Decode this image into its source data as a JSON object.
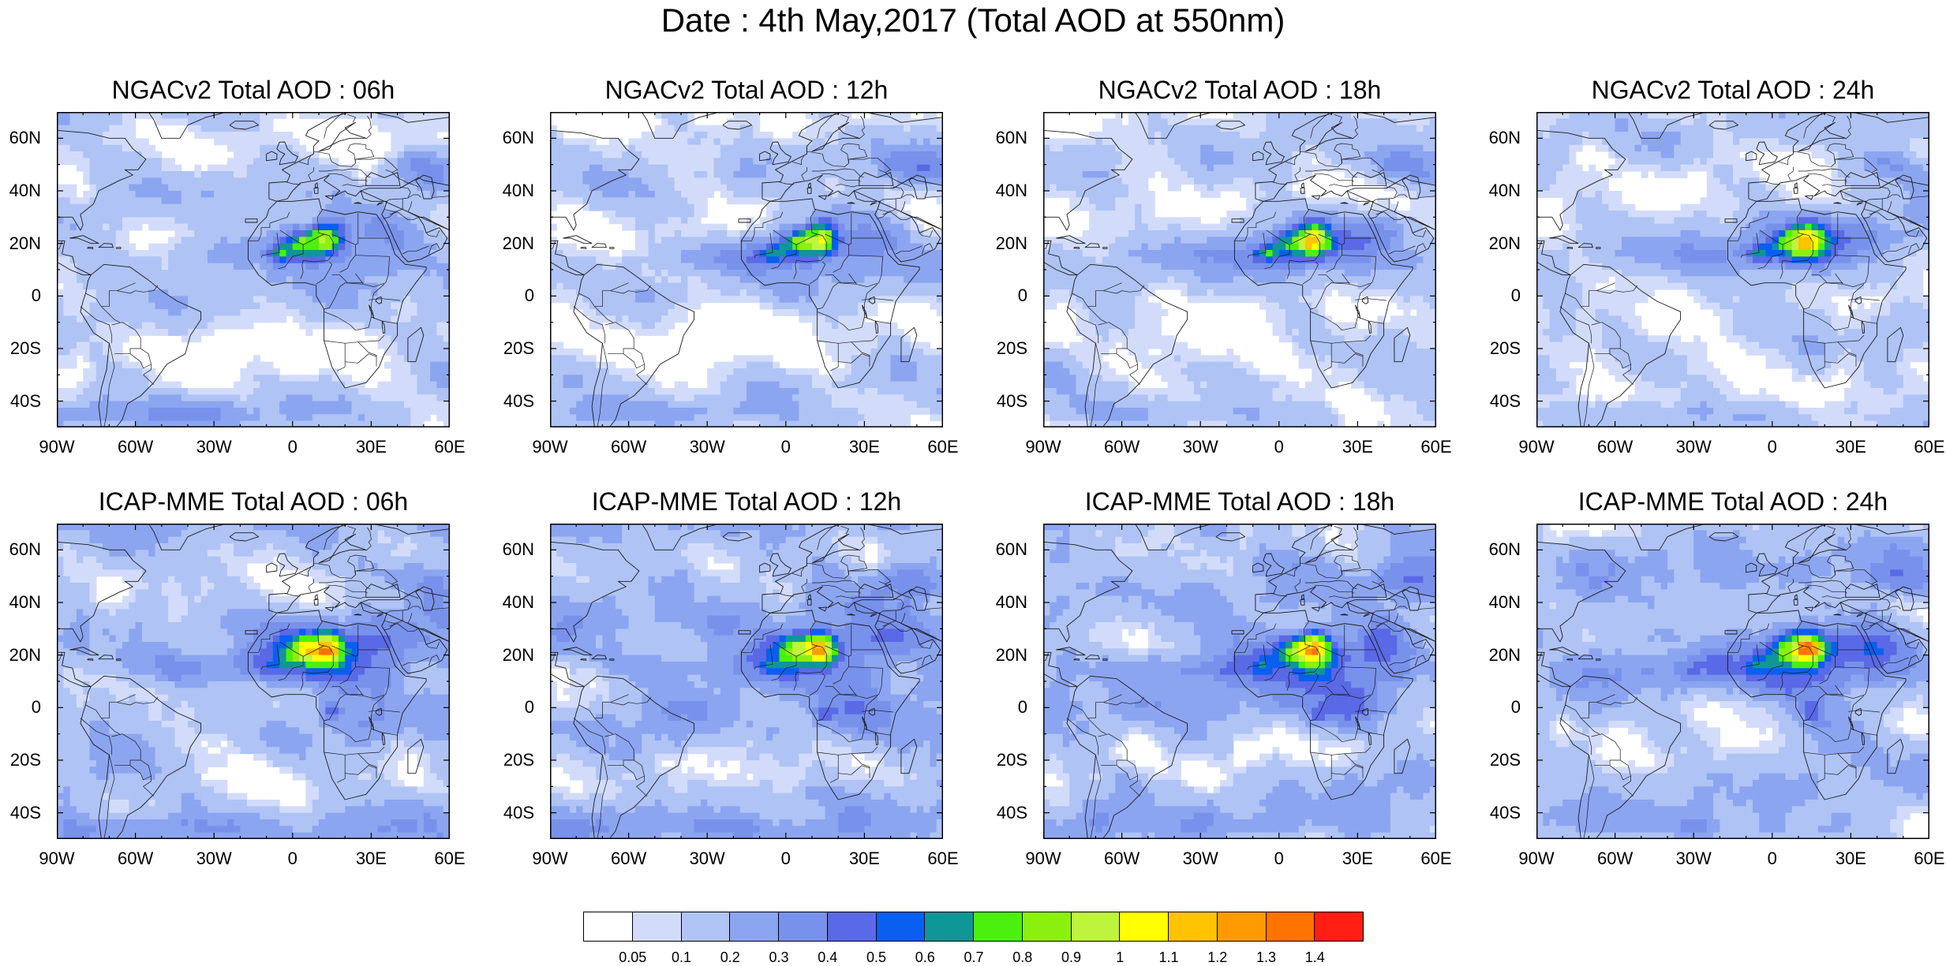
{
  "figure": {
    "title": "Date : 4th May,2017 (Total AOD at 550nm)"
  },
  "axes": {
    "lat_ticks": [
      "60N",
      "40N",
      "20N",
      "0",
      "20S",
      "40S"
    ],
    "lon_ticks": [
      "90W",
      "60W",
      "30W",
      "0",
      "30E",
      "60E"
    ],
    "lat_range": [
      -50,
      70
    ],
    "lon_range": [
      -90,
      60
    ]
  },
  "panels": [
    {
      "title": "NGACv2 Total AOD : 06h",
      "model": "NGACv2",
      "hour": 6
    },
    {
      "title": "NGACv2 Total AOD : 12h",
      "model": "NGACv2",
      "hour": 12
    },
    {
      "title": "NGACv2 Total AOD : 18h",
      "model": "NGACv2",
      "hour": 18
    },
    {
      "title": "NGACv2 Total AOD : 24h",
      "model": "NGACv2",
      "hour": 24
    },
    {
      "title": "ICAP-MME Total AOD : 06h",
      "model": "ICAP-MME",
      "hour": 6
    },
    {
      "title": "ICAP-MME Total AOD : 12h",
      "model": "ICAP-MME",
      "hour": 12
    },
    {
      "title": "ICAP-MME Total AOD : 18h",
      "model": "ICAP-MME",
      "hour": 18
    },
    {
      "title": "ICAP-MME Total AOD : 24h",
      "model": "ICAP-MME",
      "hour": 24
    }
  ],
  "colorbar": {
    "labels": [
      "0.05",
      "0.1",
      "0.2",
      "0.3",
      "0.4",
      "0.5",
      "0.6",
      "0.7",
      "0.8",
      "0.9",
      "1",
      "1.1",
      "1.2",
      "1.3",
      "1.4"
    ],
    "colors": [
      "#ffffff",
      "#d2dcfa",
      "#afc3f5",
      "#8ca5f0",
      "#7891eb",
      "#5a69e6",
      "#0a5ff0",
      "#0f9696",
      "#4bf00f",
      "#8cf00f",
      "#bef53c",
      "#ffff00",
      "#ffc300",
      "#ff9b00",
      "#ff7300",
      "#ff1e14"
    ]
  }
}
